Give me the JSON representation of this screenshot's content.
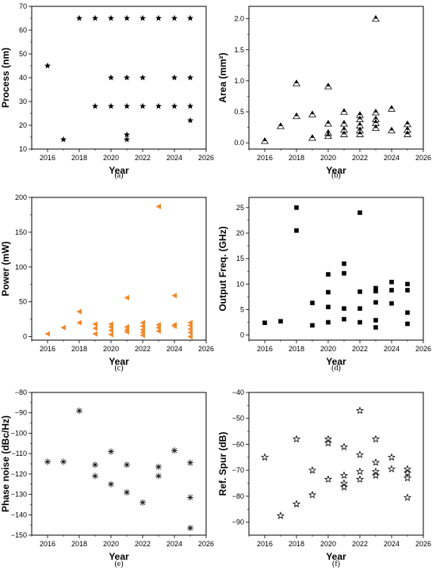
{
  "chart_data": [
    {
      "type": "scatter",
      "caption": "(a)",
      "xlabel": "Year",
      "ylabel": "Process (nm)",
      "xlim": [
        2015,
        2026
      ],
      "ylim": [
        10,
        70
      ],
      "xticks": [
        2016,
        2018,
        2020,
        2022,
        2024,
        2026
      ],
      "yticks": [
        10,
        20,
        30,
        40,
        50,
        60,
        70
      ],
      "marker": "star",
      "color": "#000000",
      "points": [
        [
          2016,
          45
        ],
        [
          2017,
          14
        ],
        [
          2018,
          65
        ],
        [
          2019,
          65
        ],
        [
          2019,
          28
        ],
        [
          2020,
          65
        ],
        [
          2020,
          40
        ],
        [
          2020,
          28
        ],
        [
          2021,
          65
        ],
        [
          2021,
          40
        ],
        [
          2021,
          28
        ],
        [
          2021,
          16
        ],
        [
          2021,
          14
        ],
        [
          2022,
          65
        ],
        [
          2022,
          40
        ],
        [
          2022,
          28
        ],
        [
          2023,
          65
        ],
        [
          2023,
          28
        ],
        [
          2024,
          65
        ],
        [
          2024,
          40
        ],
        [
          2024,
          28
        ],
        [
          2025,
          65
        ],
        [
          2025,
          40
        ],
        [
          2025,
          28
        ],
        [
          2025,
          22
        ]
      ]
    },
    {
      "type": "scatter",
      "caption": "(b)",
      "xlabel": "Year",
      "ylabel": "Area (mm²)",
      "xlim": [
        2015,
        2026
      ],
      "ylim": [
        -0.1,
        2.2
      ],
      "xticks": [
        2016,
        2018,
        2020,
        2022,
        2024,
        2026
      ],
      "yticks": [
        0.0,
        0.5,
        1.0,
        1.5,
        2.0
      ],
      "ytick_labels": [
        "0.0",
        "0.5",
        "1.0",
        "1.5",
        "2.0"
      ],
      "marker": "half-filled-triangle",
      "color": "#000000",
      "points": [
        [
          2016,
          0.03
        ],
        [
          2017,
          0.27
        ],
        [
          2018,
          0.96
        ],
        [
          2018,
          0.43
        ],
        [
          2019,
          0.46
        ],
        [
          2019,
          0.08
        ],
        [
          2020,
          0.91
        ],
        [
          2020,
          0.31
        ],
        [
          2020,
          0.16
        ],
        [
          2020,
          0.11
        ],
        [
          2021,
          0.5
        ],
        [
          2021,
          0.31
        ],
        [
          2021,
          0.21
        ],
        [
          2021,
          0.14
        ],
        [
          2022,
          0.45
        ],
        [
          2022,
          0.38
        ],
        [
          2022,
          0.28
        ],
        [
          2022,
          0.2
        ],
        [
          2022,
          0.14
        ],
        [
          2023,
          2.0
        ],
        [
          2023,
          0.49
        ],
        [
          2023,
          0.38
        ],
        [
          2023,
          0.32
        ],
        [
          2023,
          0.24
        ],
        [
          2024,
          0.55
        ],
        [
          2024,
          0.2
        ],
        [
          2025,
          0.3
        ],
        [
          2025,
          0.21
        ],
        [
          2025,
          0.14
        ]
      ]
    },
    {
      "type": "scatter",
      "caption": "(c)",
      "xlabel": "Year",
      "ylabel": "Power (mW)",
      "xlim": [
        2015,
        2026
      ],
      "ylim": [
        -5,
        200
      ],
      "xticks": [
        2016,
        2018,
        2020,
        2022,
        2024,
        2026
      ],
      "yticks": [
        0,
        50,
        100,
        150,
        200
      ],
      "marker": "left-triangle",
      "color": "#F28A2E",
      "points": [
        [
          2016,
          4
        ],
        [
          2017,
          13
        ],
        [
          2018,
          36
        ],
        [
          2018,
          20
        ],
        [
          2019,
          18
        ],
        [
          2019,
          12
        ],
        [
          2019,
          4
        ],
        [
          2020,
          18
        ],
        [
          2020,
          14
        ],
        [
          2020,
          9
        ],
        [
          2020,
          3
        ],
        [
          2021,
          56
        ],
        [
          2021,
          14
        ],
        [
          2021,
          10
        ],
        [
          2021,
          7
        ],
        [
          2022,
          20
        ],
        [
          2022,
          15
        ],
        [
          2022,
          10
        ],
        [
          2022,
          6
        ],
        [
          2022,
          2
        ],
        [
          2023,
          187
        ],
        [
          2023,
          17
        ],
        [
          2023,
          13
        ],
        [
          2023,
          8
        ],
        [
          2024,
          59
        ],
        [
          2024,
          17
        ],
        [
          2024,
          15
        ],
        [
          2025,
          20
        ],
        [
          2025,
          16
        ],
        [
          2025,
          11
        ],
        [
          2025,
          6
        ],
        [
          2025,
          0
        ]
      ]
    },
    {
      "type": "scatter",
      "caption": "(d)",
      "xlabel": "Year",
      "ylabel": "Output Freq. (GHz)",
      "xlim": [
        2015,
        2026
      ],
      "ylim": [
        -1,
        27
      ],
      "xticks": [
        2016,
        2018,
        2020,
        2022,
        2024,
        2026
      ],
      "yticks": [
        0,
        5,
        10,
        15,
        20,
        25
      ],
      "marker": "square",
      "color": "#000000",
      "points": [
        [
          2016,
          2.4
        ],
        [
          2017,
          2.7
        ],
        [
          2018,
          25
        ],
        [
          2018,
          20.5
        ],
        [
          2019,
          6.3
        ],
        [
          2019,
          1.9
        ],
        [
          2020,
          11.9
        ],
        [
          2020,
          8.4
        ],
        [
          2020,
          5.5
        ],
        [
          2020,
          2.5
        ],
        [
          2021,
          14
        ],
        [
          2021,
          12.1
        ],
        [
          2021,
          5.2
        ],
        [
          2021,
          3.1
        ],
        [
          2022,
          24
        ],
        [
          2022,
          8.5
        ],
        [
          2022,
          5.2
        ],
        [
          2022,
          2.5
        ],
        [
          2023,
          9.2
        ],
        [
          2023,
          8.6
        ],
        [
          2023,
          6.4
        ],
        [
          2023,
          2.9
        ],
        [
          2023,
          1.5
        ],
        [
          2024,
          10.4
        ],
        [
          2024,
          8.8
        ],
        [
          2024,
          6.2
        ],
        [
          2025,
          10
        ],
        [
          2025,
          8.8
        ],
        [
          2025,
          4.4
        ],
        [
          2025,
          2.2
        ]
      ]
    },
    {
      "type": "scatter",
      "caption": "(e)",
      "xlabel": "Year",
      "ylabel": "Phase noise (dBc/Hz)",
      "xlim": [
        2015,
        2026
      ],
      "ylim": [
        -150,
        -80
      ],
      "xticks": [
        2016,
        2018,
        2020,
        2022,
        2024,
        2026
      ],
      "yticks": [
        -150,
        -140,
        -130,
        -120,
        -110,
        -100,
        -90,
        -80
      ],
      "marker": "asterisk",
      "color": "#000000",
      "points": [
        [
          2016,
          -114
        ],
        [
          2017,
          -114
        ],
        [
          2018,
          -89
        ],
        [
          2019,
          -115.5
        ],
        [
          2019,
          -121
        ],
        [
          2020,
          -109
        ],
        [
          2020,
          -125
        ],
        [
          2021,
          -115.5
        ],
        [
          2021,
          -129
        ],
        [
          2022,
          -134
        ],
        [
          2023,
          -116.5
        ],
        [
          2023,
          -121
        ],
        [
          2024,
          -108.5
        ],
        [
          2025,
          -114.5
        ],
        [
          2025,
          -131.5
        ],
        [
          2025,
          -146.5
        ]
      ]
    },
    {
      "type": "scatter",
      "caption": "(f)",
      "xlabel": "Year",
      "ylabel": "Ref. Spur (dB)",
      "xlim": [
        2015,
        2026
      ],
      "ylim": [
        -95,
        -40
      ],
      "xticks": [
        2016,
        2018,
        2020,
        2022,
        2024,
        2026
      ],
      "yticks": [
        -90,
        -80,
        -70,
        -60,
        -50,
        -40
      ],
      "marker": "star-outline",
      "color": "#000000",
      "points": [
        [
          2016,
          -65
        ],
        [
          2017,
          -87.5
        ],
        [
          2018,
          -58
        ],
        [
          2018,
          -83
        ],
        [
          2019,
          -70
        ],
        [
          2019,
          -79.5
        ],
        [
          2020,
          -58
        ],
        [
          2020,
          -59.5
        ],
        [
          2020,
          -73.5
        ],
        [
          2021,
          -61
        ],
        [
          2021,
          -72
        ],
        [
          2021,
          -75
        ],
        [
          2021,
          -76.5
        ],
        [
          2022,
          -47
        ],
        [
          2022,
          -64
        ],
        [
          2022,
          -70.5
        ],
        [
          2022,
          -73.5
        ],
        [
          2023,
          -58
        ],
        [
          2023,
          -67
        ],
        [
          2023,
          -70.5
        ],
        [
          2023,
          -72
        ],
        [
          2024,
          -65
        ],
        [
          2024,
          -69.5
        ],
        [
          2025,
          -69.5
        ],
        [
          2025,
          -71
        ],
        [
          2025,
          -73
        ],
        [
          2025,
          -80.5
        ]
      ]
    }
  ]
}
